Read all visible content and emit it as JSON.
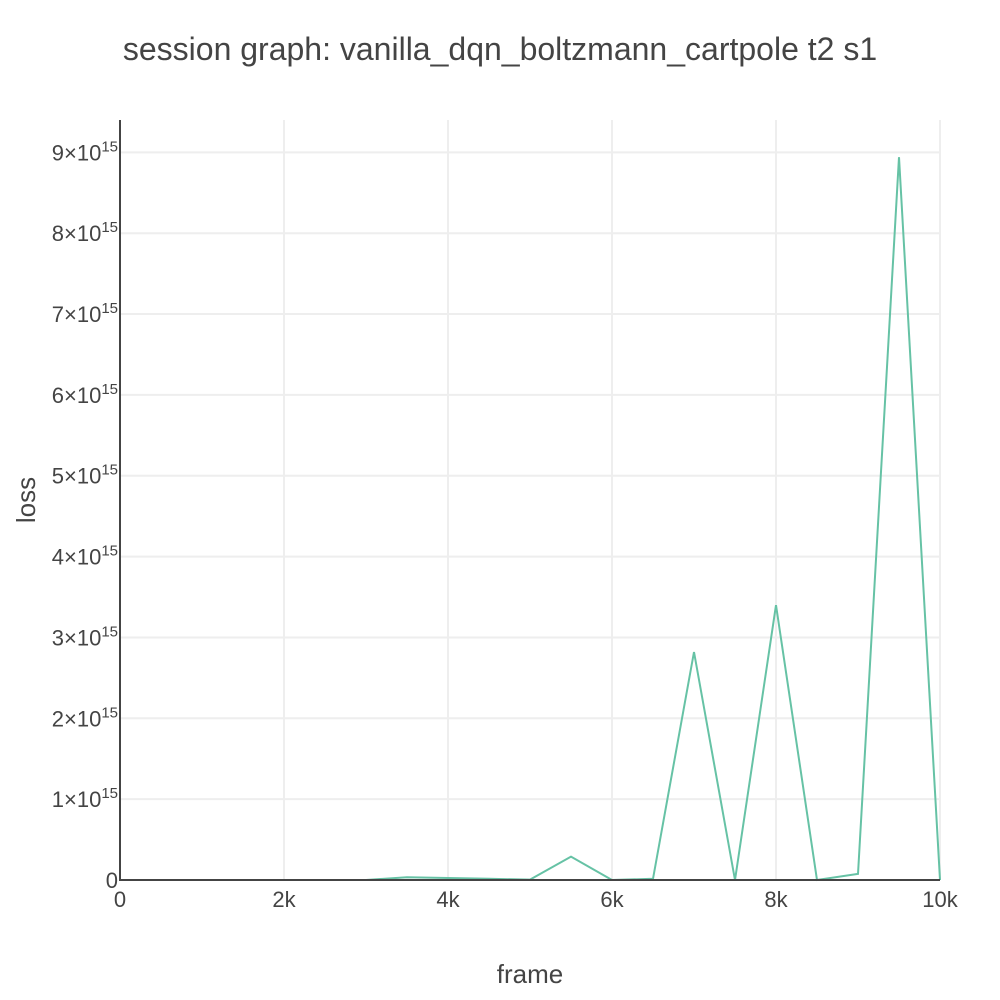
{
  "chart_data": {
    "type": "line",
    "title": "session graph: vanilla_dqn_boltzmann_cartpole t2 s1",
    "xlabel": "frame",
    "ylabel": "loss",
    "xlim": [
      0,
      10000
    ],
    "ylim": [
      0,
      9400000000000000.0
    ],
    "grid": true,
    "x_ticks": [
      {
        "value": 0,
        "label": "0"
      },
      {
        "value": 2000,
        "label": "2k"
      },
      {
        "value": 4000,
        "label": "4k"
      },
      {
        "value": 6000,
        "label": "6k"
      },
      {
        "value": 8000,
        "label": "8k"
      },
      {
        "value": 10000,
        "label": "10k"
      }
    ],
    "y_ticks": [
      {
        "value": 0,
        "mantissa": "0",
        "exponent": ""
      },
      {
        "value": 1000000000000000.0,
        "mantissa": "1×10",
        "exponent": "15"
      },
      {
        "value": 2000000000000000.0,
        "mantissa": "2×10",
        "exponent": "15"
      },
      {
        "value": 3000000000000000.0,
        "mantissa": "3×10",
        "exponent": "15"
      },
      {
        "value": 4000000000000000.0,
        "mantissa": "4×10",
        "exponent": "15"
      },
      {
        "value": 5000000000000000.0,
        "mantissa": "5×10",
        "exponent": "15"
      },
      {
        "value": 6000000000000000.0,
        "mantissa": "6×10",
        "exponent": "15"
      },
      {
        "value": 7000000000000000.0,
        "mantissa": "7×10",
        "exponent": "15"
      },
      {
        "value": 8000000000000000.0,
        "mantissa": "8×10",
        "exponent": "15"
      },
      {
        "value": 9000000000000000.0,
        "mantissa": "9×10",
        "exponent": "15"
      }
    ],
    "series": [
      {
        "color": "#66c2a5",
        "x": [
          500,
          1000,
          1500,
          2000,
          2500,
          3000,
          3500,
          4000,
          4500,
          5000,
          5500,
          6000,
          6500,
          7000,
          7500,
          8000,
          8500,
          9000,
          9500,
          10000
        ],
        "y": [
          0,
          0,
          0,
          0,
          0,
          0,
          35000000000000.0,
          25000000000000.0,
          15000000000000.0,
          5000000000000.0,
          290000000000000.0,
          0,
          15000000000000.0,
          2820000000000000.0,
          0,
          3400000000000000.0,
          0,
          75000000000000.0,
          8940000000000000.0,
          0
        ]
      }
    ]
  }
}
